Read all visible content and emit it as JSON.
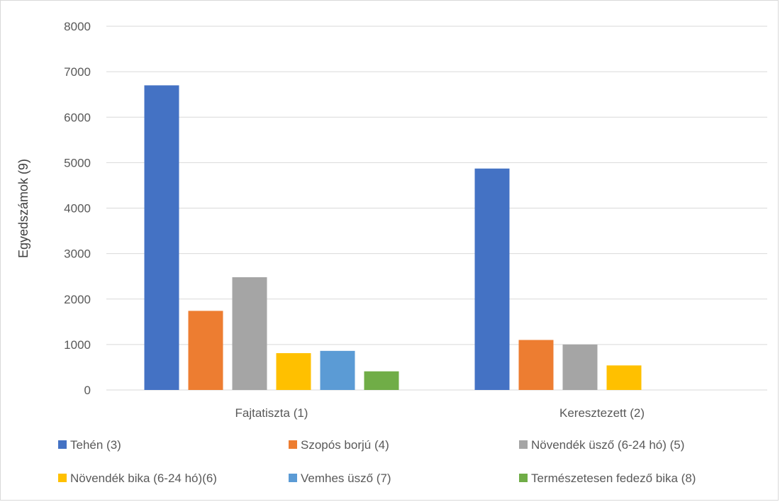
{
  "chart_data": {
    "type": "bar",
    "title": "",
    "xlabel": "",
    "ylabel": "Egyedszámok (9)",
    "ylim": [
      0,
      8000
    ],
    "yticks": [
      0,
      1000,
      2000,
      3000,
      4000,
      5000,
      6000,
      7000,
      8000
    ],
    "grid": true,
    "legend_position": "bottom",
    "categories": [
      "Fajtatiszta (1)",
      "Keresztezett (2)"
    ],
    "series": [
      {
        "name": "Tehén (3)",
        "color": "#4472c4",
        "values": [
          6700,
          4870
        ]
      },
      {
        "name": "Szopós borjú (4)",
        "color": "#ed7d31",
        "values": [
          1740,
          1100
        ]
      },
      {
        "name": "Növendék üsző (6-24 hó) (5)",
        "color": "#a5a5a5",
        "values": [
          2480,
          1000
        ]
      },
      {
        "name": "Növendék bika (6-24 hó)(6)",
        "color": "#ffc000",
        "values": [
          810,
          540
        ]
      },
      {
        "name": "Vemhes üsző (7)",
        "color": "#5b9bd5",
        "values": [
          860,
          0
        ]
      },
      {
        "name": "Természetesen fedező bika (8)",
        "color": "#70ad47",
        "values": [
          410,
          0
        ]
      }
    ]
  }
}
